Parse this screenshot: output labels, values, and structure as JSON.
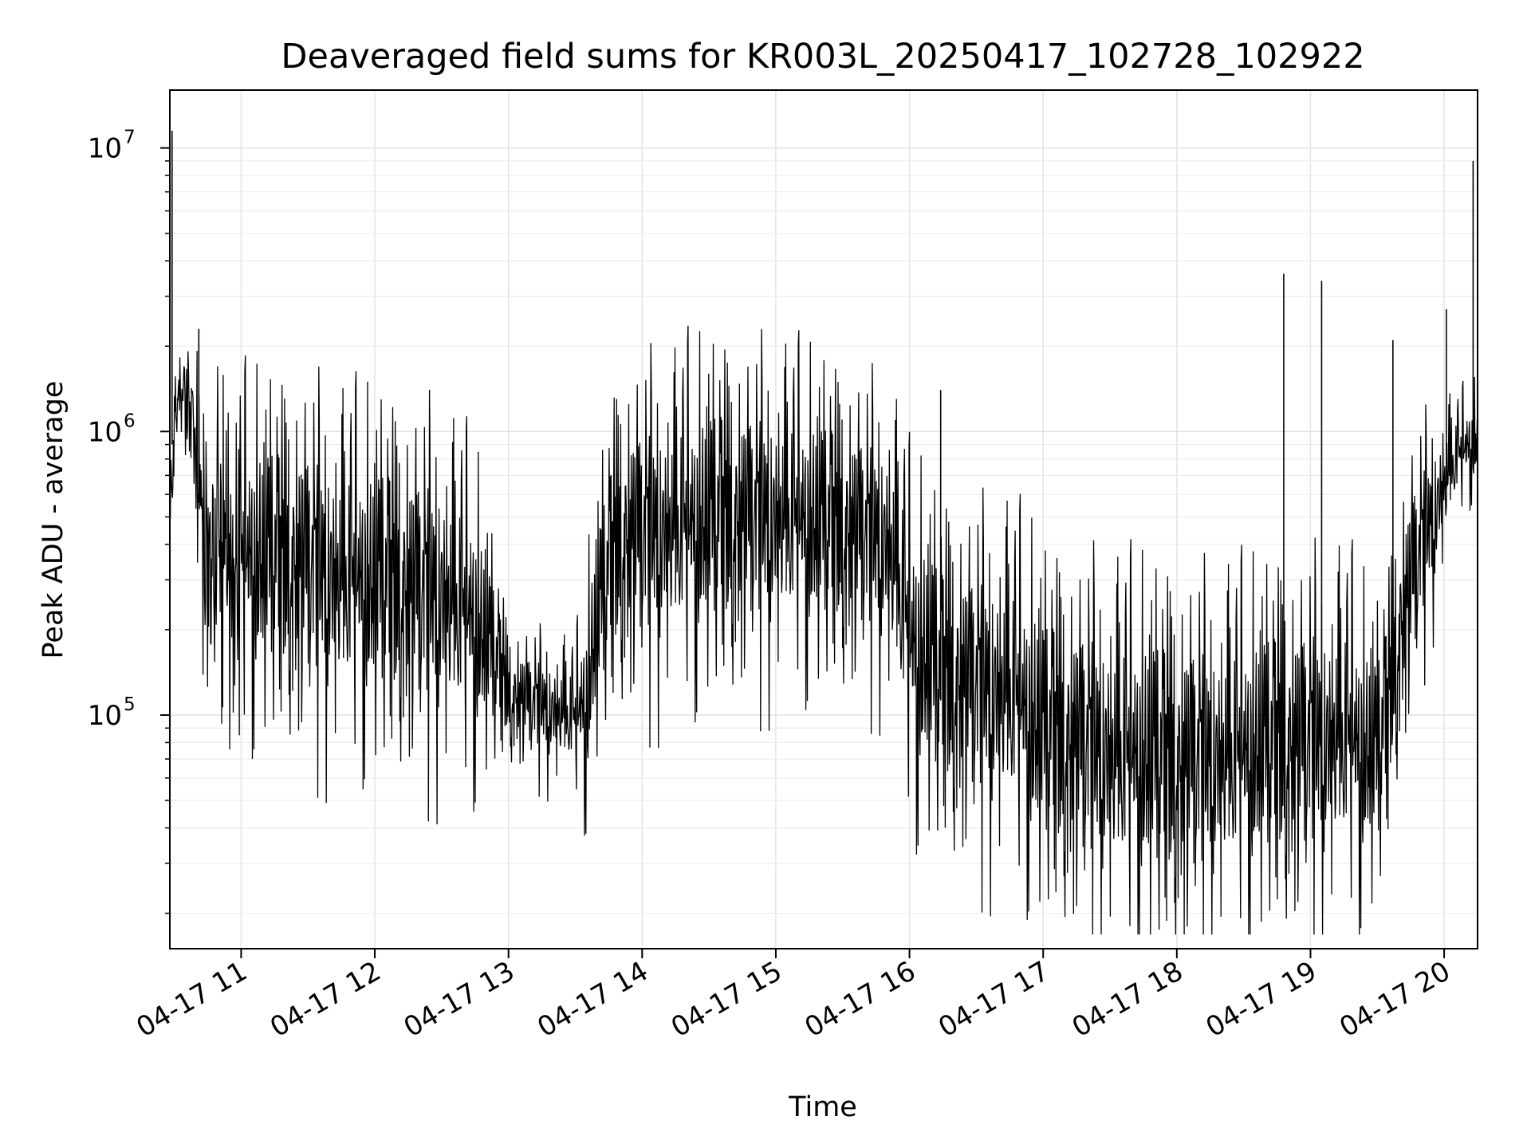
{
  "chart_data": {
    "type": "line",
    "title": "Deaveraged field sums for KR003L_20250417_102728_102922",
    "xlabel": "Time",
    "ylabel": "Peak ADU - average",
    "yscale": "log",
    "ylim": [
      15000,
      16000000
    ],
    "xlim": [
      "2025-04-17 10:28",
      "2025-04-17 20:15"
    ],
    "grid": true,
    "line_color": "#000000",
    "x_ticks": [
      {
        "value": "2025-04-17 11:00",
        "label": "04-17 11"
      },
      {
        "value": "2025-04-17 12:00",
        "label": "04-17 12"
      },
      {
        "value": "2025-04-17 13:00",
        "label": "04-17 13"
      },
      {
        "value": "2025-04-17 14:00",
        "label": "04-17 14"
      },
      {
        "value": "2025-04-17 15:00",
        "label": "04-17 15"
      },
      {
        "value": "2025-04-17 16:00",
        "label": "04-17 16"
      },
      {
        "value": "2025-04-17 17:00",
        "label": "04-17 17"
      },
      {
        "value": "2025-04-17 18:00",
        "label": "04-17 18"
      },
      {
        "value": "2025-04-17 19:00",
        "label": "04-17 19"
      },
      {
        "value": "2025-04-17 20:00",
        "label": "04-17 20"
      }
    ],
    "y_ticks": [
      {
        "value": 100000,
        "base": "10",
        "exp": "5"
      },
      {
        "value": 1000000,
        "base": "10",
        "exp": "6"
      },
      {
        "value": 10000000,
        "base": "10",
        "exp": "7"
      }
    ],
    "series": [
      {
        "times": [
          "2025-04-17 10:28",
          "2025-04-17 10:29",
          "2025-04-17 10:30",
          "2025-04-17 10:32",
          "2025-04-17 10:35",
          "2025-04-17 10:38",
          "2025-04-17 10:42",
          "2025-04-17 10:45",
          "2025-04-17 11:00",
          "2025-04-17 11:30",
          "2025-04-17 11:45",
          "2025-04-17 12:30",
          "2025-04-17 12:45",
          "2025-04-17 13:00",
          "2025-04-17 13:30",
          "2025-04-17 13:35",
          "2025-04-17 13:50",
          "2025-04-17 14:30",
          "2025-04-17 15:00",
          "2025-04-17 15:30",
          "2025-04-17 15:50",
          "2025-04-17 16:00",
          "2025-04-17 16:15",
          "2025-04-17 16:45",
          "2025-04-17 17:00",
          "2025-04-17 17:30",
          "2025-04-17 18:00",
          "2025-04-17 18:30",
          "2025-04-17 18:50",
          "2025-04-17 19:15",
          "2025-04-17 19:30",
          "2025-04-17 19:35",
          "2025-04-17 19:45",
          "2025-04-17 19:55",
          "2025-04-17 20:05",
          "2025-04-17 20:15"
        ],
        "centers": [
          700000,
          900000,
          1200000,
          1300000,
          1400000,
          1200000,
          600000,
          400000,
          300000,
          280000,
          250000,
          220000,
          180000,
          110000,
          90000,
          100000,
          350000,
          400000,
          420000,
          380000,
          350000,
          150000,
          110000,
          100000,
          70000,
          60000,
          55000,
          60000,
          65000,
          70000,
          60000,
          90000,
          250000,
          450000,
          750000,
          900000
        ],
        "spreads": [
          0.7,
          0.6,
          0.45,
          0.35,
          0.45,
          0.45,
          0.95,
          1.2,
          1.25,
          1.3,
          1.3,
          1.3,
          1.2,
          0.5,
          0.55,
          0.9,
          1.2,
          1.25,
          1.2,
          1.15,
          1.1,
          1.3,
          1.25,
          1.3,
          1.3,
          1.35,
          1.35,
          1.3,
          1.3,
          1.3,
          1.1,
          1.0,
          1.0,
          0.75,
          0.45,
          0.4
        ]
      }
    ],
    "spikes": [
      {
        "t": "2025-04-17 10:29",
        "v": 11500000
      },
      {
        "t": "2025-04-17 10:41",
        "v": 2300000
      },
      {
        "t": "2025-04-17 16:14",
        "v": 1400000
      },
      {
        "t": "2025-04-17 18:48",
        "v": 3600000
      },
      {
        "t": "2025-04-17 19:05",
        "v": 3400000
      },
      {
        "t": "2025-04-17 19:37",
        "v": 2100000
      },
      {
        "t": "2025-04-17 20:01",
        "v": 2700000
      },
      {
        "t": "2025-04-17 20:13",
        "v": 9000000
      }
    ]
  }
}
